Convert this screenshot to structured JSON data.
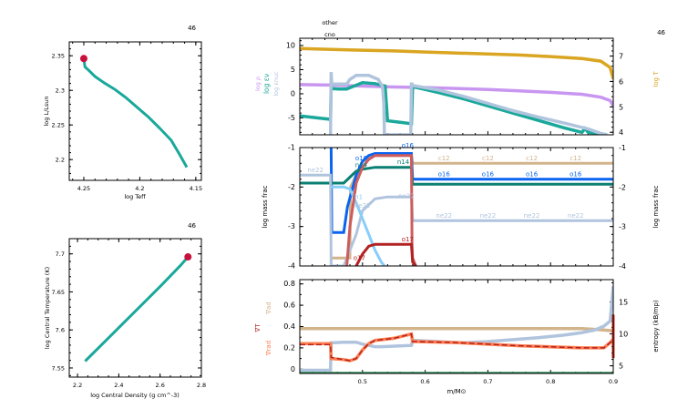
{
  "colors": {
    "teal": "#1aa89a",
    "dark_teal": "#0a7f72",
    "marker": "#c8103c",
    "gold": "#daa520",
    "violet": "#c896f0",
    "lightsteel": "#b0c4de",
    "tan": "#d2b48c",
    "blue": "#0a64f0",
    "skyblue": "#87cefa",
    "indianred": "#cd5c5c",
    "firebrick": "#b22222",
    "coral": "#ff7f50",
    "green": "#2e8b57",
    "red": "#d03020"
  },
  "chart_data": [
    {
      "id": "hr",
      "type": "line",
      "title": "46",
      "xlabel": "log Teff",
      "ylabel": "log L/Lsun",
      "xlim": [
        4.263,
        4.145
      ],
      "ylim": [
        2.17,
        2.37
      ],
      "xticks": [
        "4.25",
        "4.2",
        "4.15"
      ],
      "xtick_values": [
        4.25,
        4.2,
        4.15
      ],
      "yticks": [
        "2.2",
        "2.25",
        "2.3",
        "2.35"
      ],
      "ytick_values": [
        2.2,
        2.25,
        2.3,
        2.35
      ],
      "series": [
        {
          "name": "track",
          "color": "#1aa89a",
          "x": [
            4.25,
            4.249,
            4.245,
            4.24,
            4.232,
            4.222,
            4.212,
            4.202,
            4.192,
            4.182,
            4.172,
            4.165,
            4.158
          ],
          "y": [
            2.346,
            2.334,
            2.328,
            2.32,
            2.311,
            2.301,
            2.289,
            2.275,
            2.261,
            2.245,
            2.228,
            2.209,
            2.189
          ]
        }
      ],
      "marker": {
        "x": 4.25,
        "y": 2.346,
        "color": "#c8103c"
      }
    },
    {
      "id": "rho_t",
      "type": "line",
      "title": "46",
      "xlabel": "log Central Density (g cm^-3)",
      "ylabel": "log Central Temperature (K)",
      "xlim": [
        2.16,
        2.8
      ],
      "ylim": [
        7.538,
        7.72
      ],
      "xticks": [
        "2.2",
        "2.4",
        "2.6",
        "2.8"
      ],
      "xtick_values": [
        2.2,
        2.4,
        2.6,
        2.8
      ],
      "yticks": [
        "7.55",
        "7.6",
        "7.65",
        "7.7"
      ],
      "ytick_values": [
        7.55,
        7.6,
        7.65,
        7.7
      ],
      "series": [
        {
          "name": "track",
          "color": "#1aa89a",
          "x": [
            2.237,
            2.3,
            2.4,
            2.5,
            2.6,
            2.7,
            2.735
          ],
          "y": [
            7.559,
            7.576,
            7.603,
            7.63,
            7.657,
            7.685,
            7.696
          ]
        }
      ],
      "marker": {
        "x": 2.735,
        "y": 7.696,
        "color": "#c8103c"
      }
    },
    {
      "id": "profile_top",
      "type": "line",
      "title": "46",
      "labels_above": [
        "other",
        "cno"
      ],
      "xlim": [
        0.4,
        0.9
      ],
      "ylim": [
        -8.5,
        11.5
      ],
      "y2lim": [
        3.9,
        7.7
      ],
      "yticks": [
        "-5",
        "0",
        "5",
        "10"
      ],
      "ytick_values": [
        -5,
        0,
        5,
        10
      ],
      "y2ticks": [
        "4",
        "5",
        "6",
        "7"
      ],
      "y2tick_values": [
        4,
        5,
        6,
        7
      ],
      "ylabels": [
        {
          "text": "log ρ",
          "color": "#c896f0"
        },
        {
          "text": "log εν",
          "color": "#1aa89a"
        },
        {
          "text": "log εnuc",
          "color": "#b0c4de"
        }
      ],
      "y2label": {
        "text": "log T",
        "color": "#daa520"
      },
      "series": [
        {
          "name": "log T",
          "axis": "y2",
          "color": "#daa520",
          "x": [
            0.4,
            0.45,
            0.5,
            0.55,
            0.6,
            0.65,
            0.7,
            0.75,
            0.8,
            0.85,
            0.88,
            0.895,
            0.9
          ],
          "y": [
            7.3,
            7.26,
            7.23,
            7.2,
            7.16,
            7.12,
            7.08,
            7.04,
            6.98,
            6.9,
            6.8,
            6.55,
            6.1
          ]
        },
        {
          "name": "log rho",
          "axis": "y",
          "color": "#c896f0",
          "x": [
            0.4,
            0.45,
            0.5,
            0.55,
            0.6,
            0.65,
            0.7,
            0.75,
            0.8,
            0.85,
            0.88,
            0.895,
            0.9
          ],
          "y": [
            1.9,
            1.8,
            1.6,
            1.4,
            1.3,
            1.1,
            0.9,
            0.6,
            0.3,
            -0.1,
            -0.7,
            -1.4,
            -2.5
          ]
        },
        {
          "name": "log eps_nu",
          "axis": "y",
          "color": "#1aa89a",
          "x": [
            0.4,
            0.449,
            0.45,
            0.462,
            0.475,
            0.5,
            0.52,
            0.536,
            0.54,
            0.56,
            0.578,
            0.58,
            0.62,
            0.66,
            0.7,
            0.74,
            0.78,
            0.82,
            0.85,
            0.855,
            0.86,
            0.88,
            0.89
          ],
          "y": [
            -4.6,
            -5.3,
            1.1,
            1.0,
            1.0,
            2.3,
            2.1,
            1.6,
            -5.6,
            -5.9,
            -6.2,
            1.5,
            0.3,
            -1.0,
            -2.5,
            -4.0,
            -5.5,
            -7.0,
            -8.0,
            -7.2,
            -8.0,
            -8.3,
            -8.5
          ]
        },
        {
          "name": "log eps_nuc",
          "axis": "y",
          "color": "#b0c4de",
          "x": [
            0.449,
            0.45,
            0.451,
            0.46,
            0.475,
            0.48,
            0.49,
            0.51,
            0.525,
            0.532,
            0.534,
            0.535,
            0.577,
            0.578,
            0.579,
            0.58,
            0.62,
            0.66,
            0.7,
            0.74,
            0.78,
            0.82,
            0.86,
            0.88,
            0.89
          ],
          "y": [
            -8.5,
            4.5,
            2.0,
            2.0,
            2.0,
            3.0,
            3.8,
            3.8,
            3.0,
            1.5,
            -2.0,
            -8.5,
            -8.5,
            2.0,
            2.0,
            1.7,
            0.8,
            -0.5,
            -2.0,
            -3.5,
            -4.8,
            -6.0,
            -7.3,
            -8.2,
            -8.5
          ]
        }
      ]
    },
    {
      "id": "profile_mid",
      "type": "line",
      "xlim": [
        0.4,
        0.9
      ],
      "ylim": [
        -4,
        -1
      ],
      "yticks": [
        "-4",
        "-3",
        "-2",
        "-1"
      ],
      "ytick_values": [
        -4,
        -3,
        -2,
        -1
      ],
      "ylabel": "log mass frac",
      "y2label": "log mass frac",
      "series": [
        {
          "name": "c12",
          "color": "#d2b48c",
          "x": [
            0.449,
            0.45,
            0.48,
            0.481,
            0.5,
            0.52,
            0.578,
            0.58,
            0.9
          ],
          "y": [
            -3.8,
            -3.8,
            -3.8,
            -2.0,
            -1.35,
            -1.2,
            -1.2,
            -1.4,
            -1.4
          ]
        },
        {
          "name": "o16",
          "color": "#0a64f0",
          "x": [
            0.45,
            0.451,
            0.47,
            0.476,
            0.49,
            0.5,
            0.51,
            0.52,
            0.578,
            0.58,
            0.9
          ],
          "y": [
            -1.0,
            -3.15,
            -3.15,
            -2.5,
            -1.7,
            -1.35,
            -1.2,
            -1.15,
            -1.15,
            -1.8,
            -1.8
          ]
        },
        {
          "name": "n14",
          "color": "#0a7f72",
          "x": [
            0.4,
            0.449,
            0.45,
            0.47,
            0.48,
            0.49,
            0.5,
            0.52,
            0.578,
            0.58,
            0.9
          ],
          "y": [
            -1.9,
            -1.9,
            -1.9,
            -1.9,
            -1.75,
            -1.6,
            -1.55,
            -1.5,
            -1.5,
            -1.93,
            -1.93
          ]
        },
        {
          "name": "ne22",
          "color": "#b0c4de",
          "x": [
            0.4,
            0.449,
            0.45,
            0.47,
            0.49,
            0.5,
            0.52,
            0.54,
            0.578,
            0.58,
            0.9
          ],
          "y": [
            -1.7,
            -1.7,
            -4.0,
            -4.0,
            -3.2,
            -2.6,
            -2.3,
            -2.25,
            -2.25,
            -2.85,
            -2.85
          ]
        },
        {
          "name": "h1",
          "color": "#87cefa",
          "x": [
            0.45,
            0.47,
            0.48,
            0.49,
            0.5,
            0.51,
            0.52,
            0.53,
            0.535
          ],
          "y": [
            -2.0,
            -2.0,
            -2.05,
            -2.4,
            -2.8,
            -3.2,
            -3.6,
            -3.9,
            -4.0
          ]
        },
        {
          "name": "c13",
          "color": "#cd5c5c",
          "x": [
            0.475,
            0.48,
            0.49,
            0.5,
            0.51,
            0.52,
            0.578,
            0.579,
            0.58,
            0.585
          ],
          "y": [
            -4.0,
            -3.0,
            -1.9,
            -1.5,
            -1.3,
            -1.2,
            -1.2,
            -3.5,
            -3.8,
            -4.0
          ]
        },
        {
          "name": "o17",
          "color": "#b22222",
          "x": [
            0.49,
            0.5,
            0.51,
            0.52,
            0.578,
            0.58,
            0.585
          ],
          "y": [
            -4.0,
            -3.7,
            -3.5,
            -3.45,
            -3.45,
            -3.9,
            -4.0
          ]
        }
      ],
      "annotations": [
        {
          "text": "ne22",
          "x": 0.425,
          "y": -1.62,
          "color": "#b0c4de"
        },
        {
          "text": "o16",
          "x": 0.498,
          "y": -1.32,
          "color": "#0a64f0"
        },
        {
          "text": "n14",
          "x": 0.498,
          "y": -1.5,
          "color": "#0a7f72"
        },
        {
          "text": "h1",
          "x": 0.494,
          "y": -2.3,
          "color": "#87cefa"
        },
        {
          "text": "ne22",
          "x": 0.5,
          "y": -2.52,
          "color": "#b0c4de"
        },
        {
          "text": "o16",
          "x": 0.572,
          "y": -1.0,
          "color": "#0a64f0"
        },
        {
          "text": "n14",
          "x": 0.565,
          "y": -1.42,
          "color": "#0a7f72"
        },
        {
          "text": "ne22",
          "x": 0.57,
          "y": -2.28,
          "color": "#b0c4de"
        },
        {
          "text": "o17",
          "x": 0.572,
          "y": -3.38,
          "color": "#b22222"
        },
        {
          "text": "o17",
          "x": 0.495,
          "y": -3.85,
          "color": "#b22222"
        },
        {
          "text": "c12",
          "x": 0.63,
          "y": -1.32,
          "color": "#d2b48c"
        },
        {
          "text": "c12",
          "x": 0.7,
          "y": -1.32,
          "color": "#d2b48c"
        },
        {
          "text": "c12",
          "x": 0.77,
          "y": -1.32,
          "color": "#d2b48c"
        },
        {
          "text": "c12",
          "x": 0.84,
          "y": -1.32,
          "color": "#d2b48c"
        },
        {
          "text": "o16",
          "x": 0.63,
          "y": -1.73,
          "color": "#0a64f0"
        },
        {
          "text": "o16",
          "x": 0.7,
          "y": -1.73,
          "color": "#0a64f0"
        },
        {
          "text": "o16",
          "x": 0.77,
          "y": -1.73,
          "color": "#0a64f0"
        },
        {
          "text": "o16",
          "x": 0.84,
          "y": -1.73,
          "color": "#0a64f0"
        },
        {
          "text": "ne22",
          "x": 0.63,
          "y": -2.78,
          "color": "#b0c4de"
        },
        {
          "text": "ne22",
          "x": 0.7,
          "y": -2.78,
          "color": "#b0c4de"
        },
        {
          "text": "ne22",
          "x": 0.77,
          "y": -2.78,
          "color": "#b0c4de"
        },
        {
          "text": "ne22",
          "x": 0.84,
          "y": -2.78,
          "color": "#b0c4de"
        }
      ]
    },
    {
      "id": "profile_bot",
      "type": "line",
      "xlabel": "m/M⊙",
      "xlim": [
        0.4,
        0.9
      ],
      "xticks": [
        "0.5",
        "0.6",
        "0.7",
        "0.8",
        "0.9"
      ],
      "xtick_values": [
        0.5,
        0.6,
        0.7,
        0.8,
        0.9
      ],
      "ylim": [
        -0.04,
        0.84
      ],
      "yticks": [
        "0",
        "0.2",
        "0.4",
        "0.6",
        "0.8"
      ],
      "ytick_values": [
        0,
        0.2,
        0.4,
        0.6,
        0.8
      ],
      "y2lim": [
        3.8,
        18.5
      ],
      "y2ticks": [
        "5",
        "10",
        "15"
      ],
      "y2tick_values": [
        5,
        10,
        15
      ],
      "ylabels": [
        {
          "text": "∇ad",
          "color": "#d2b48c"
        },
        {
          "text": "∇T",
          "color": "#b22222"
        },
        {
          "text": "∇rad",
          "color": "#ff7f50"
        }
      ],
      "y2label": {
        "text": "entropy (kB/mp)",
        "color": "#000000"
      },
      "series": [
        {
          "name": "grad_ad",
          "axis": "y",
          "color": "#d2b48c",
          "x": [
            0.4,
            0.85,
            0.88,
            0.9
          ],
          "y": [
            0.38,
            0.38,
            0.37,
            0.36
          ]
        },
        {
          "name": "entropy",
          "axis": "y2",
          "color": "#b0c4de",
          "x": [
            0.4,
            0.449,
            0.45,
            0.47,
            0.49,
            0.5,
            0.52,
            0.53,
            0.578,
            0.58,
            0.62,
            0.66,
            0.7,
            0.74,
            0.78,
            0.82,
            0.85,
            0.87,
            0.885,
            0.895,
            0.9
          ],
          "y": [
            4.3,
            4.3,
            8.6,
            8.7,
            8.7,
            8.4,
            8.0,
            8.0,
            8.2,
            9.0,
            8.8,
            8.6,
            8.8,
            9.1,
            9.4,
            9.8,
            10.2,
            10.6,
            11.2,
            12.0,
            17.5
          ]
        },
        {
          "name": "grad_rad",
          "axis": "y",
          "color": "#ff7f50",
          "x": [
            0.4,
            0.449,
            0.45,
            0.47,
            0.48,
            0.49,
            0.5,
            0.51,
            0.52,
            0.55,
            0.578,
            0.58,
            0.65,
            0.75,
            0.85,
            0.885,
            0.895,
            0.9
          ],
          "y": [
            0.24,
            0.24,
            0.1,
            0.09,
            0.08,
            0.1,
            0.18,
            0.24,
            0.27,
            0.29,
            0.33,
            0.26,
            0.25,
            0.22,
            0.2,
            0.2,
            0.25,
            0.28
          ]
        },
        {
          "name": "grad_T",
          "axis": "y",
          "color": "#b22222",
          "dashed": true,
          "x": [
            0.4,
            0.449,
            0.45,
            0.47,
            0.48,
            0.49,
            0.5,
            0.51,
            0.52,
            0.55,
            0.578,
            0.58,
            0.65,
            0.75,
            0.85,
            0.885,
            0.895,
            0.9
          ],
          "y": [
            0.23,
            0.23,
            0.11,
            0.09,
            0.08,
            0.1,
            0.18,
            0.24,
            0.27,
            0.29,
            0.33,
            0.26,
            0.25,
            0.22,
            0.2,
            0.2,
            0.25,
            0.28
          ]
        },
        {
          "name": "mixing",
          "axis": "y",
          "color": "#2e8b57",
          "x": [
            0.4,
            0.9
          ],
          "y": [
            -0.04,
            -0.04
          ]
        }
      ]
    }
  ]
}
